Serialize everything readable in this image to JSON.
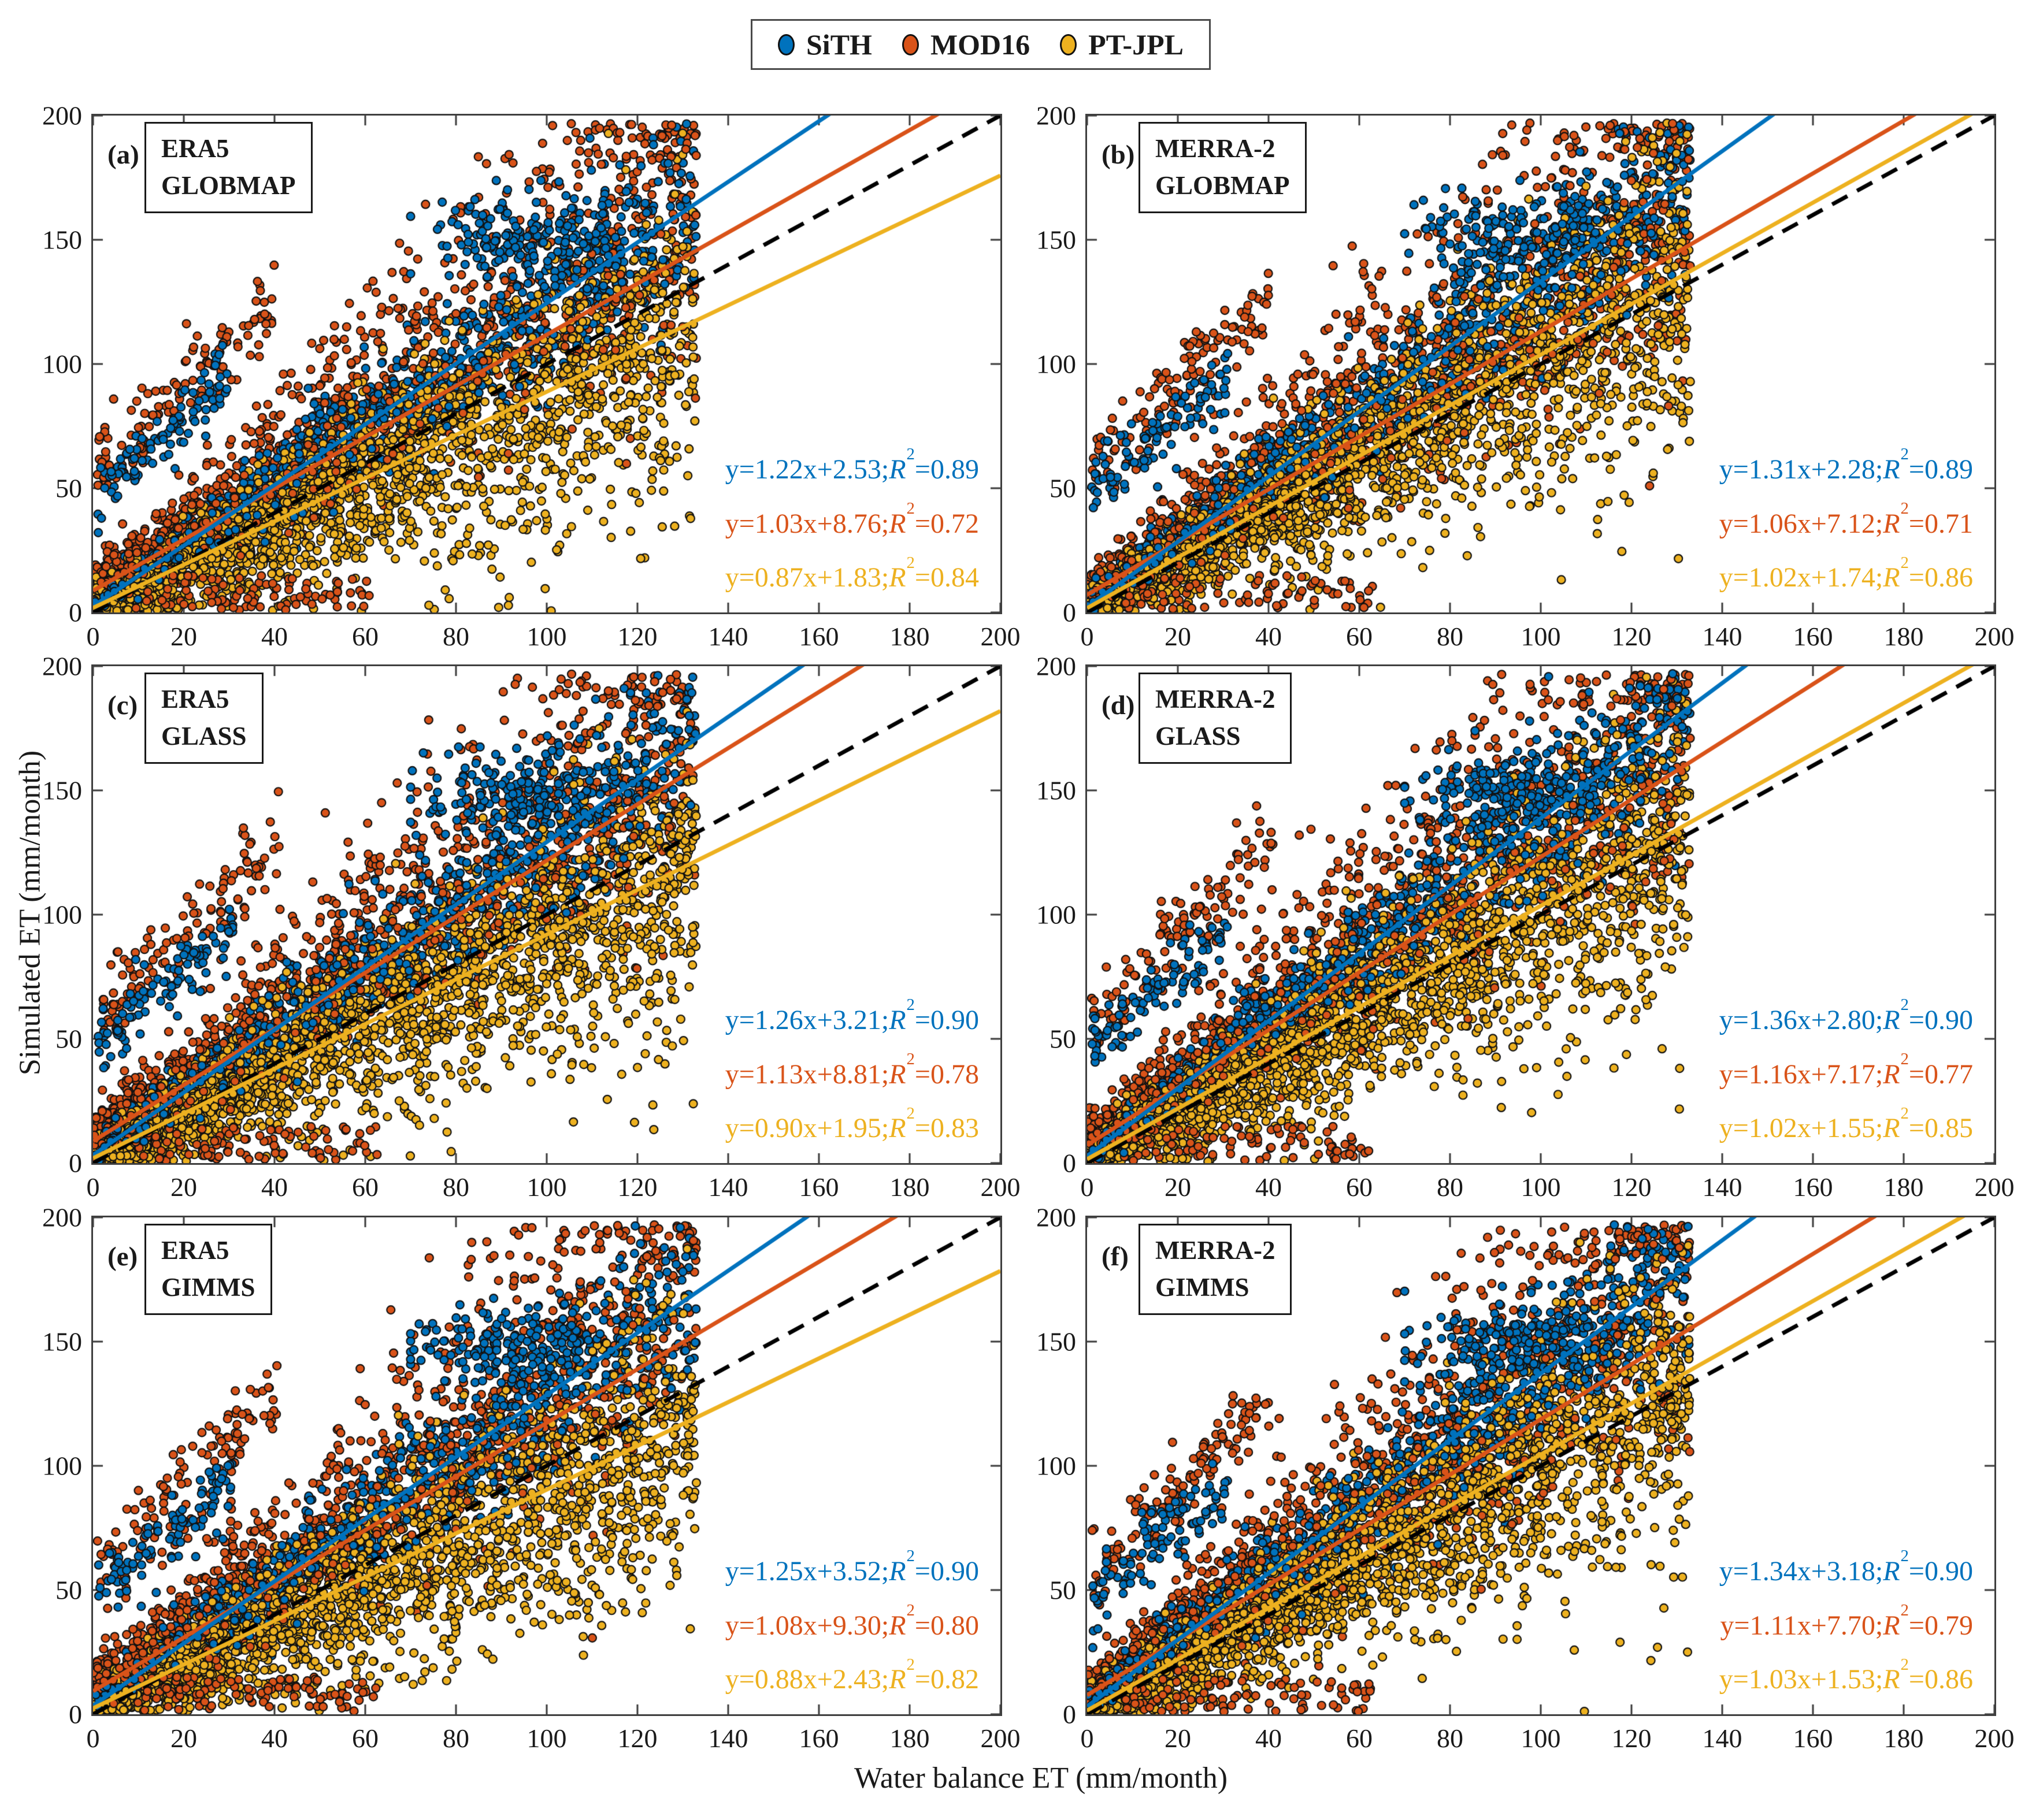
{
  "chart_data": {
    "type": "scatter",
    "xlabel": "Water balance ET (mm/month)",
    "ylabel": "Simulated ET (mm/month)",
    "xlim": [
      0,
      200
    ],
    "ylim": [
      0,
      200
    ],
    "x_ticks": [
      0,
      20,
      40,
      60,
      80,
      100,
      120,
      140,
      160,
      180,
      200
    ],
    "y_ticks": [
      0,
      50,
      100,
      150,
      200
    ],
    "grid": false,
    "legend": {
      "position": "top-center",
      "items": [
        {
          "label": "SiTH",
          "color": "#0072BD"
        },
        {
          "label": "MOD16",
          "color": "#D95319"
        },
        {
          "label": "PT-JPL",
          "color": "#EDB120"
        }
      ]
    },
    "series_colors": {
      "SiTH": "#0072BD",
      "MOD16": "#D95319",
      "PT-JPL": "#EDB120"
    },
    "reference_line": {
      "type": "1:1",
      "slope": 1,
      "intercept": 0,
      "style": "dashed",
      "color": "#000000"
    },
    "eq_tokens": {
      "pre": "y=",
      "mid": "x+",
      "sep": ";",
      "r": "R",
      "sup": "2",
      "eq": "="
    },
    "panels": [
      {
        "id": "a",
        "label": "(a)",
        "forcing": "ERA5",
        "vegetation": "GLOBMAP",
        "fits": [
          {
            "series": "SiTH",
            "slope": 1.22,
            "intercept": 2.53,
            "r2": 0.89
          },
          {
            "series": "MOD16",
            "slope": 1.03,
            "intercept": 8.76,
            "r2": 0.72
          },
          {
            "series": "PT-JPL",
            "slope": 0.87,
            "intercept": 1.83,
            "r2": 0.84
          }
        ]
      },
      {
        "id": "b",
        "label": "(b)",
        "forcing": "MERRA-2",
        "vegetation": "GLOBMAP",
        "fits": [
          {
            "series": "SiTH",
            "slope": 1.31,
            "intercept": 2.28,
            "r2": 0.89
          },
          {
            "series": "MOD16",
            "slope": 1.06,
            "intercept": 7.12,
            "r2": 0.71
          },
          {
            "series": "PT-JPL",
            "slope": 1.02,
            "intercept": 1.74,
            "r2": 0.86
          }
        ]
      },
      {
        "id": "c",
        "label": "(c)",
        "forcing": "ERA5",
        "vegetation": "GLASS",
        "fits": [
          {
            "series": "SiTH",
            "slope": 1.26,
            "intercept": 3.21,
            "r2": 0.9
          },
          {
            "series": "MOD16",
            "slope": 1.13,
            "intercept": 8.81,
            "r2": 0.78
          },
          {
            "series": "PT-JPL",
            "slope": 0.9,
            "intercept": 1.95,
            "r2": 0.83
          }
        ]
      },
      {
        "id": "d",
        "label": "(d)",
        "forcing": "MERRA-2",
        "vegetation": "GLASS",
        "fits": [
          {
            "series": "SiTH",
            "slope": 1.36,
            "intercept": 2.8,
            "r2": 0.9
          },
          {
            "series": "MOD16",
            "slope": 1.16,
            "intercept": 7.17,
            "r2": 0.77
          },
          {
            "series": "PT-JPL",
            "slope": 1.02,
            "intercept": 1.55,
            "r2": 0.85
          }
        ]
      },
      {
        "id": "e",
        "label": "(e)",
        "forcing": "ERA5",
        "vegetation": "GIMMS",
        "fits": [
          {
            "series": "SiTH",
            "slope": 1.25,
            "intercept": 3.52,
            "r2": 0.9
          },
          {
            "series": "MOD16",
            "slope": 1.08,
            "intercept": 9.3,
            "r2": 0.8
          },
          {
            "series": "PT-JPL",
            "slope": 0.88,
            "intercept": 2.43,
            "r2": 0.82
          }
        ]
      },
      {
        "id": "f",
        "label": "(f)",
        "forcing": "MERRA-2",
        "vegetation": "GIMMS",
        "fits": [
          {
            "series": "SiTH",
            "slope": 1.34,
            "intercept": 3.18,
            "r2": 0.9
          },
          {
            "series": "MOD16",
            "slope": 1.11,
            "intercept": 7.7,
            "r2": 0.79
          },
          {
            "series": "PT-JPL",
            "slope": 1.03,
            "intercept": 1.53,
            "r2": 0.86
          }
        ]
      }
    ]
  },
  "scatter_gen": {
    "xmax": 133,
    "xpow": 1.22,
    "marker_radius": 7,
    "marker_stroke": "#111111",
    "draw_order": [
      "MOD16",
      "SiTH",
      "PT-JPL"
    ],
    "seeds": [
      11,
      23,
      37,
      47,
      59,
      71
    ],
    "roles": {
      "SiTH": {
        "n": 900,
        "late": 120,
        "noise_base": 3,
        "noise_slope": 0.15,
        "edge": {
          "n": 100,
          "x_start": 1,
          "x_range": 30,
          "slope": 1.55,
          "y0": 46,
          "sd": 7
        },
        "cap": {
          "n": 170,
          "mx": 96,
          "sx": 12,
          "my": 149,
          "sy": 9
        }
      },
      "MOD16": {
        "n": 1350,
        "late": 220,
        "noise_base": 5,
        "noise_slope": 0.16,
        "skew": {
          "p": 0.55,
          "amp": 0.85,
          "pow": 1.6
        },
        "edge": {
          "n": 120,
          "x_start": 1,
          "x_range": 40,
          "slope": 1.75,
          "y0": 56,
          "sd": 9
        },
        "floor_sprinkle": {
          "n": 90,
          "x0": 8,
          "xr": 55,
          "y0": 1,
          "yr": 14
        }
      },
      "PT-JPL": {
        "n": 2100,
        "late": 0,
        "noise_base": 4,
        "noise_slope": 0.2,
        "down": {
          "p": 0.3,
          "amp": 0.5,
          "pow": 2
        }
      }
    }
  }
}
